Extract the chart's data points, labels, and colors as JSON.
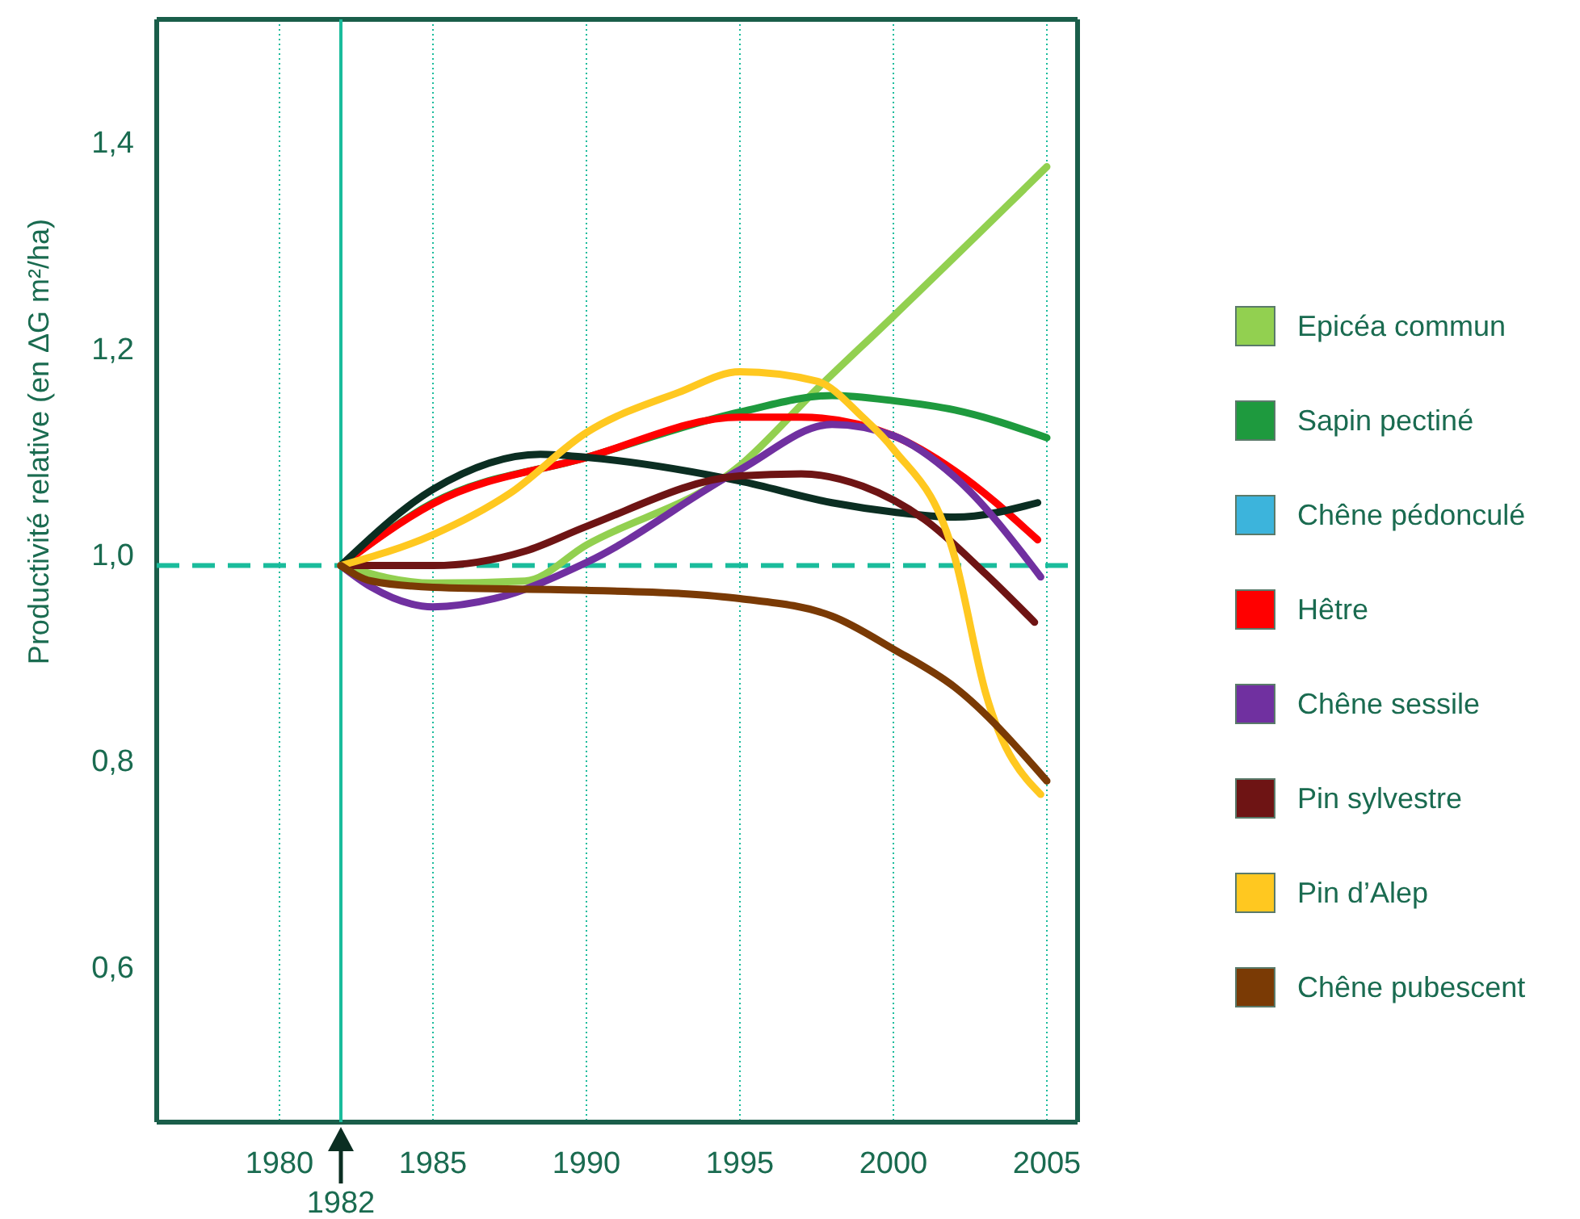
{
  "chart_data": {
    "type": "line",
    "ylabel": "Productivité relative (en ΔG m²/ha)",
    "xlim": [
      1976,
      2006
    ],
    "ylim": [
      0.45,
      1.52
    ],
    "xticks": [
      1980,
      1985,
      1990,
      1995,
      2000,
      2005
    ],
    "yticks": [
      {
        "value": 0.6,
        "label": "0,6"
      },
      {
        "value": 0.8,
        "label": "0,8"
      },
      {
        "value": 1.0,
        "label": "1,0"
      },
      {
        "value": 1.2,
        "label": "1,2"
      },
      {
        "value": 1.4,
        "label": "1,4"
      }
    ],
    "grid": "x",
    "legend": "right",
    "marker": "none",
    "line_style": "solid",
    "ref_lines": [
      {
        "axis": "y",
        "value": 0.99,
        "color": "#1abc9c",
        "line_style": "dashed"
      },
      {
        "axis": "x",
        "value": 1982,
        "label": "1982",
        "color": "#1abc9c",
        "line_style": "solid"
      }
    ],
    "series": [
      {
        "name": "Epicéa commun",
        "color": "#92d050",
        "x": [
          1982,
          1985,
          1988,
          1990,
          1995,
          1997.5,
          2000,
          2005
        ],
        "values": [
          0.99,
          0.973,
          0.975,
          1.01,
          1.087,
          1.161,
          1.232,
          1.377
        ]
      },
      {
        "name": "Sapin pectiné",
        "color": "#1e9a3e",
        "x": [
          1982,
          1985,
          1990,
          1995,
          1998,
          2000,
          2002,
          2005
        ],
        "values": [
          0.99,
          1.051,
          1.095,
          1.139,
          1.155,
          1.15,
          1.141,
          1.114
        ]
      },
      {
        "name": "Chêne pédonculé",
        "color": "#3cb4dc"
      },
      {
        "name": "Hêtre",
        "color": "#ff0000",
        "x": [
          1982,
          1985,
          1990,
          1995,
          1997,
          2000,
          2002,
          2004.7
        ],
        "values": [
          0.99,
          1.05,
          1.095,
          1.134,
          1.134,
          1.116,
          1.082,
          1.015
        ]
      },
      {
        "color": "#0b2e22",
        "x": [
          1982,
          1985,
          1988.5,
          1990,
          1995,
          1998,
          2000,
          2002,
          2004.7
        ],
        "values": [
          0.99,
          1.064,
          1.098,
          1.095,
          1.072,
          1.051,
          1.042,
          1.037,
          1.051
        ]
      },
      {
        "name": "Chêne sessile",
        "color": "#7030a0",
        "x": [
          1982,
          1983,
          1985,
          1987,
          1990,
          1995,
          1998,
          2000,
          2002,
          2004.8
        ],
        "values": [
          0.99,
          0.969,
          0.95,
          0.958,
          0.993,
          1.083,
          1.127,
          1.116,
          1.076,
          0.979
        ]
      },
      {
        "name": "Pin sylvestre",
        "color": "#6e1414",
        "x": [
          1982,
          1985,
          1988,
          1990,
          1995,
          1997,
          1999,
          2001,
          2003,
          2004.6
        ],
        "values": [
          0.99,
          0.99,
          1.004,
          1.028,
          1.077,
          1.079,
          1.067,
          1.035,
          0.982,
          0.935
        ]
      },
      {
        "name": "Pin d’Alep",
        "color": "#ffc820",
        "x": [
          1982,
          1985,
          1987.5,
          1990,
          1993,
          1995,
          1997.5,
          1999,
          2000,
          2002,
          2003,
          2004.8
        ],
        "values": [
          0.99,
          1.02,
          1.06,
          1.119,
          1.158,
          1.178,
          1.169,
          1.134,
          1.103,
          0.998,
          0.867,
          0.768
        ]
      },
      {
        "name": "Chêne pubescent",
        "color": "#7a3a05",
        "x": [
          1982,
          1983,
          1985,
          1990,
          1993,
          1995,
          1998,
          2000,
          2002,
          2005
        ],
        "values": [
          0.99,
          0.975,
          0.969,
          0.966,
          0.963,
          0.958,
          0.941,
          0.909,
          0.872,
          0.781
        ]
      }
    ]
  }
}
